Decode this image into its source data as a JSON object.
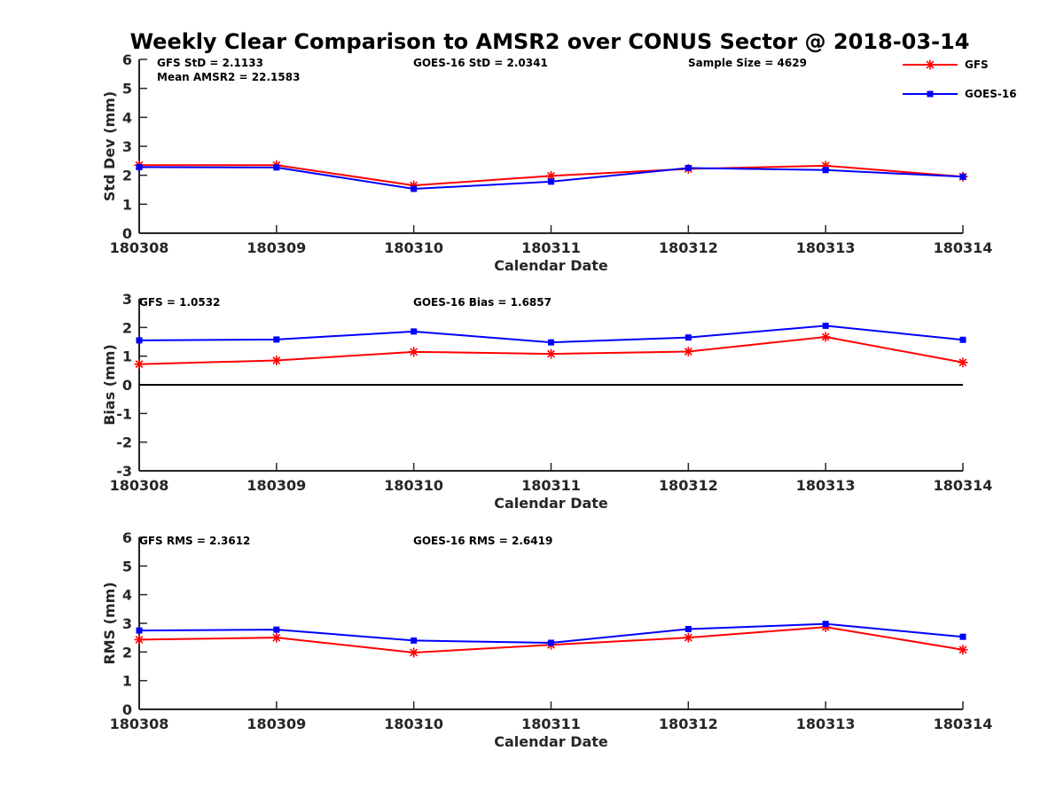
{
  "title": "Weekly Clear Comparison to AMSR2 over CONUS Sector @ 2018-03-14",
  "legend": [
    {
      "name": "GFS",
      "color": "#ff0000",
      "marker": "asterisk"
    },
    {
      "name": "GOES-16",
      "color": "#0000ff",
      "marker": "square"
    }
  ],
  "chart_data": [
    {
      "type": "line",
      "x": [
        "180308",
        "180309",
        "180310",
        "180311",
        "180312",
        "180313",
        "180314"
      ],
      "series": [
        {
          "name": "GFS",
          "color": "#ff0000",
          "values": [
            2.35,
            2.35,
            1.65,
            1.98,
            2.22,
            2.33,
            1.95
          ]
        },
        {
          "name": "GOES-16",
          "color": "#0000ff",
          "values": [
            2.28,
            2.27,
            1.53,
            1.78,
            2.25,
            2.18,
            1.95
          ]
        }
      ],
      "xlabel": "Calendar Date",
      "ylabel": "Std Dev (mm)",
      "ylim": [
        0,
        6
      ],
      "yticks": [
        0,
        1,
        2,
        3,
        4,
        5,
        6
      ],
      "zero_line": false,
      "annotations": [
        {
          "text": "GFS StD = 2.1133"
        },
        {
          "text": "Mean AMSR2 = 22.1583"
        },
        {
          "text": "GOES-16 StD = 2.0341"
        },
        {
          "text": "Sample Size = 4629"
        }
      ]
    },
    {
      "type": "line",
      "x": [
        "180308",
        "180309",
        "180310",
        "180311",
        "180312",
        "180313",
        "180314"
      ],
      "series": [
        {
          "name": "GFS",
          "color": "#ff0000",
          "values": [
            0.72,
            0.85,
            1.15,
            1.08,
            1.16,
            1.67,
            0.78
          ]
        },
        {
          "name": "GOES-16",
          "color": "#0000ff",
          "values": [
            1.55,
            1.58,
            1.86,
            1.48,
            1.65,
            2.06,
            1.57
          ]
        }
      ],
      "xlabel": "Calendar Date",
      "ylabel": "Bias (mm)",
      "ylim": [
        -3,
        3
      ],
      "yticks": [
        -3,
        -2,
        -1,
        0,
        1,
        2,
        3
      ],
      "zero_line": true,
      "annotations": [
        {
          "text": "GFS = 1.0532"
        },
        {
          "text": "GOES-16 Bias  = 1.6857"
        }
      ]
    },
    {
      "type": "line",
      "x": [
        "180308",
        "180309",
        "180310",
        "180311",
        "180312",
        "180313",
        "180314"
      ],
      "series": [
        {
          "name": "GFS",
          "color": "#ff0000",
          "values": [
            2.43,
            2.5,
            1.98,
            2.25,
            2.5,
            2.87,
            2.08
          ]
        },
        {
          "name": "GOES-16",
          "color": "#0000ff",
          "values": [
            2.75,
            2.78,
            2.4,
            2.32,
            2.8,
            2.98,
            2.53
          ]
        }
      ],
      "xlabel": "Calendar Date",
      "ylabel": "RMS (mm)",
      "ylim": [
        0,
        6
      ],
      "yticks": [
        0,
        1,
        2,
        3,
        4,
        5,
        6
      ],
      "zero_line": false,
      "annotations": [
        {
          "text": "GFS RMS = 2.3612"
        },
        {
          "text": "GOES-16 RMS = 2.6419"
        }
      ]
    }
  ]
}
